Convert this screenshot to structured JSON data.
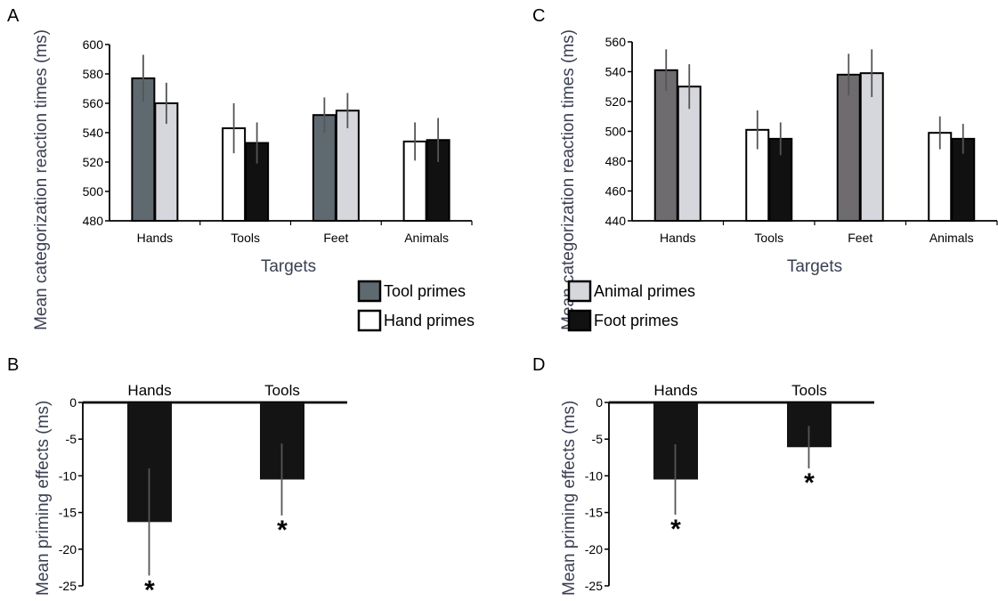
{
  "panels": {
    "A": {
      "letter": "A",
      "chart_data": {
        "type": "bar",
        "categories": [
          "Hands",
          "Tools",
          "Feet",
          "Animals"
        ],
        "series": [
          {
            "name": "Tool primes",
            "values": [
              577,
              null,
              552,
              null
            ],
            "errors": [
              16,
              null,
              12,
              null
            ]
          },
          {
            "name": "Animal primes",
            "values": [
              560,
              null,
              555,
              null
            ],
            "errors": [
              14,
              null,
              12,
              null
            ]
          },
          {
            "name": "Hand primes",
            "values": [
              null,
              543,
              null,
              534
            ],
            "errors": [
              null,
              17,
              null,
              13
            ]
          },
          {
            "name": "Foot primes",
            "values": [
              null,
              533,
              null,
              535
            ],
            "errors": [
              null,
              14,
              null,
              15
            ]
          }
        ],
        "ylabel": "Mean categorization reaction times (ms)",
        "xlabel": "Targets",
        "ylim": [
          480,
          600
        ],
        "yticks": [
          "480",
          "500",
          "520",
          "540",
          "560",
          "580",
          "600"
        ],
        "grid": false
      }
    },
    "B": {
      "letter": "B",
      "chart_data": {
        "type": "bar",
        "categories": [
          "Hands",
          "Tools"
        ],
        "values": [
          -16.3,
          -10.5
        ],
        "errors": [
          7.3,
          4.9
        ],
        "significance": [
          "*",
          "*"
        ],
        "ylabel": "Mean priming effects (ms)",
        "ylim": [
          -25,
          0
        ],
        "yticks": [
          "0",
          "-5",
          "-10",
          "-15",
          "-20",
          "-25"
        ],
        "grid": false
      }
    },
    "C": {
      "letter": "C",
      "chart_data": {
        "type": "bar",
        "categories": [
          "Hands",
          "Tools",
          "Feet",
          "Animals"
        ],
        "series": [
          {
            "name": "Tool primes",
            "values": [
              541,
              null,
              538,
              null
            ],
            "errors": [
              14,
              null,
              14,
              null
            ]
          },
          {
            "name": "Animal primes",
            "values": [
              530,
              null,
              539,
              null
            ],
            "errors": [
              15,
              null,
              16,
              null
            ]
          },
          {
            "name": "Hand primes",
            "values": [
              null,
              501,
              null,
              499
            ],
            "errors": [
              null,
              13,
              null,
              11
            ]
          },
          {
            "name": "Foot primes",
            "values": [
              null,
              495,
              null,
              495
            ],
            "errors": [
              null,
              11,
              null,
              10
            ]
          }
        ],
        "ylabel": "Mean categorization reaction times (ms)",
        "xlabel": "Targets",
        "ylim": [
          440,
          560
        ],
        "yticks": [
          "440",
          "460",
          "480",
          "500",
          "520",
          "540",
          "560"
        ],
        "grid": false
      }
    },
    "D": {
      "letter": "D",
      "chart_data": {
        "type": "bar",
        "categories": [
          "Hands",
          "Tools"
        ],
        "values": [
          -10.5,
          -6.1
        ],
        "errors": [
          4.8,
          2.9
        ],
        "significance": [
          "*",
          "*"
        ],
        "ylabel": "Mean priming effects (ms)",
        "ylim": [
          -25,
          0
        ],
        "yticks": [
          "0",
          "-5",
          "-10",
          "-15",
          "-20",
          "-25"
        ],
        "grid": false
      }
    }
  },
  "legend": {
    "items": [
      {
        "label": "Tool primes",
        "color": "#5f6a70"
      },
      {
        "label": "Animal primes",
        "color": "#d6d7dc"
      },
      {
        "label": "Hand primes",
        "color": "#ffffff"
      },
      {
        "label": "Foot primes",
        "color": "#111111"
      }
    ]
  },
  "colors": {
    "tool_primes_A": "#5f6a70",
    "tool_primes_C": "#6f6c70",
    "animal_primes": "#d6d7dc",
    "hand_primes": "#ffffff",
    "foot_primes": "#111111",
    "priming_bar": "#141414",
    "axis_title": "#3a3f52",
    "error_bar": "#555555"
  }
}
